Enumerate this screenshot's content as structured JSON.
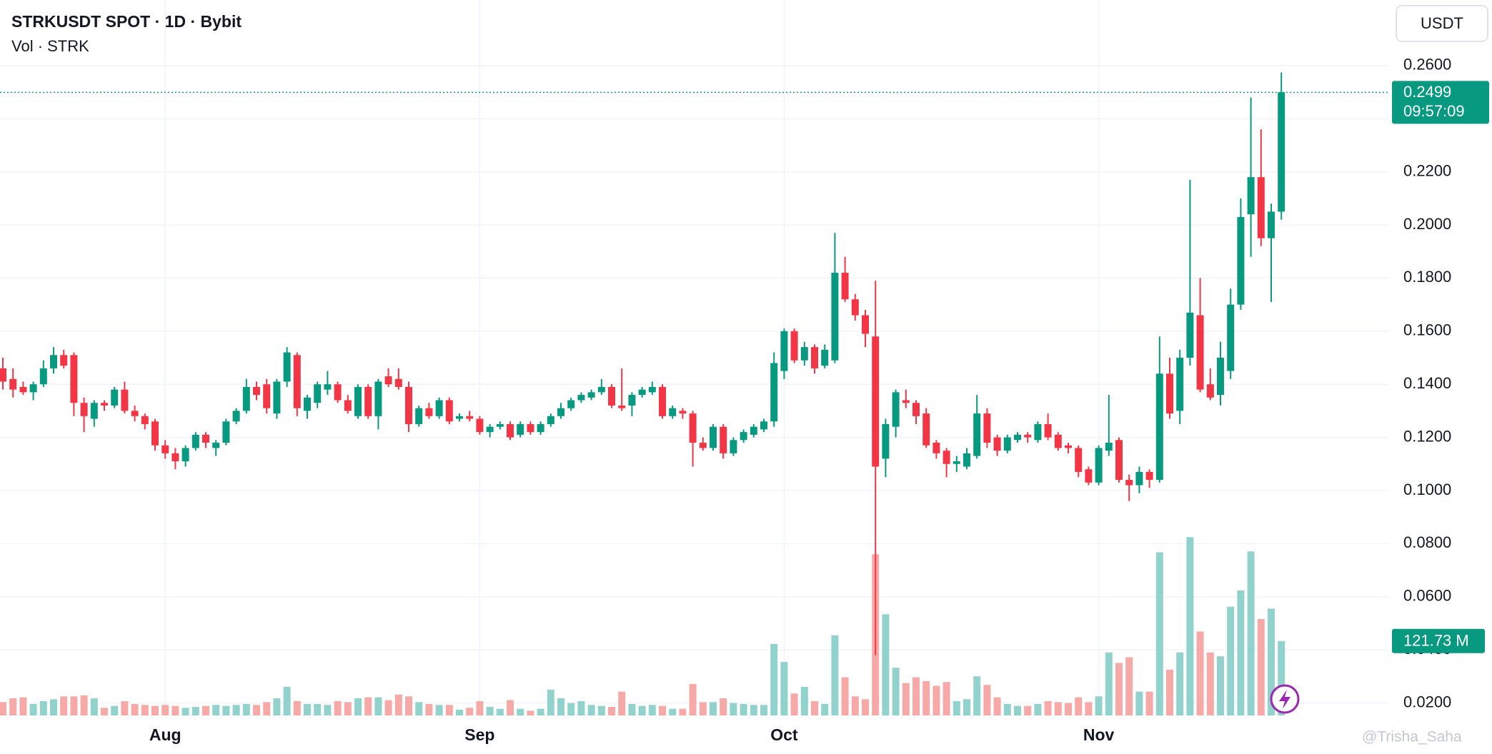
{
  "chart_data": {
    "type": "candlestick",
    "title": "STRKUSDT SPOT · 1D · Bybit",
    "subtitle": "Vol · STRK",
    "currency": "USDT",
    "countdown": "09:57:09",
    "last_price": 0.2499,
    "last_volume_label": "121.73 M",
    "watermark": "@Trisha_Saha",
    "up_color": "#089981",
    "down_color": "#f23645",
    "volume_up_color": "#92d2cc",
    "volume_down_color": "#f7a9a7",
    "grid": true,
    "ylim": [
      0.0153,
      0.2847
    ],
    "vlim": [
      0,
      1170
    ],
    "yticks": [
      {
        "value": 0.02,
        "label": "0.0200"
      },
      {
        "value": 0.04,
        "label": "0.0400"
      },
      {
        "value": 0.06,
        "label": "0.0600"
      },
      {
        "value": 0.08,
        "label": "0.0800"
      },
      {
        "value": 0.1,
        "label": "0.1000"
      },
      {
        "value": 0.12,
        "label": "0.1200"
      },
      {
        "value": 0.14,
        "label": "0.1400"
      },
      {
        "value": 0.16,
        "label": "0.1600"
      },
      {
        "value": 0.18,
        "label": "0.1800"
      },
      {
        "value": 0.2,
        "label": "0.2000"
      },
      {
        "value": 0.22,
        "label": "0.2200"
      },
      {
        "value": 0.24,
        "label": "0.2400"
      },
      {
        "value": 0.26,
        "label": "0.2600"
      }
    ],
    "categories": [
      null,
      null,
      null,
      null,
      null,
      null,
      null,
      null,
      null,
      null,
      null,
      null,
      null,
      null,
      null,
      null,
      "Aug",
      null,
      null,
      null,
      null,
      null,
      null,
      null,
      null,
      null,
      null,
      null,
      null,
      null,
      null,
      null,
      null,
      null,
      null,
      null,
      null,
      null,
      null,
      null,
      null,
      null,
      null,
      null,
      null,
      null,
      null,
      "Sep",
      null,
      null,
      null,
      null,
      null,
      null,
      null,
      null,
      null,
      null,
      null,
      null,
      null,
      null,
      null,
      null,
      null,
      null,
      null,
      null,
      null,
      null,
      null,
      null,
      null,
      null,
      null,
      null,
      null,
      "Oct",
      null,
      null,
      null,
      null,
      null,
      null,
      null,
      null,
      null,
      null,
      null,
      null,
      null,
      null,
      null,
      null,
      null,
      null,
      null,
      null,
      null,
      null,
      null,
      null,
      null,
      null,
      null,
      null,
      null,
      null,
      "Nov",
      null,
      null,
      null,
      null,
      null,
      null,
      null,
      null,
      null,
      null,
      null,
      null,
      null,
      null,
      null,
      null,
      null,
      null
    ],
    "open": [
      0.146,
      0.142,
      0.139,
      0.137,
      0.14,
      0.146,
      0.151,
      0.151,
      0.133,
      0.127,
      0.133,
      0.132,
      0.138,
      0.13,
      0.128,
      0.126,
      0.117,
      0.114,
      0.111,
      0.116,
      0.121,
      0.116,
      0.118,
      0.126,
      0.13,
      0.139,
      0.14,
      0.129,
      0.141,
      0.151,
      0.13,
      0.133,
      0.138,
      0.14,
      0.134,
      0.128,
      0.139,
      0.128,
      0.143,
      0.142,
      0.139,
      0.125,
      0.131,
      0.128,
      0.134,
      0.127,
      0.128,
      0.127,
      0.122,
      0.124,
      0.125,
      0.121,
      0.125,
      0.122,
      0.125,
      0.128,
      0.131,
      0.134,
      0.135,
      0.137,
      0.139,
      0.132,
      0.132,
      0.136,
      0.137,
      0.139,
      0.128,
      0.13,
      0.129,
      0.118,
      0.116,
      0.124,
      0.114,
      0.119,
      0.121,
      0.123,
      0.126,
      0.145,
      0.16,
      0.149,
      0.154,
      0.147,
      0.149,
      0.182,
      0.172,
      0.166,
      0.158,
      0.112,
      0.124,
      0.134,
      0.133,
      0.129,
      0.118,
      0.115,
      0.11,
      0.109,
      0.113,
      0.129,
      0.12,
      0.115,
      0.119,
      0.121,
      0.119,
      0.125,
      0.121,
      0.117,
      0.116,
      0.108,
      0.103,
      0.115,
      0.119,
      0.104,
      0.102,
      0.107,
      0.104,
      0.144,
      0.13,
      0.15,
      0.166,
      0.14,
      0.136,
      0.145,
      0.17,
      0.204,
      0.218,
      0.195,
      0.205
    ],
    "high": [
      0.15,
      0.146,
      0.141,
      0.141,
      0.149,
      0.154,
      0.153,
      0.152,
      0.135,
      0.134,
      0.134,
      0.139,
      0.141,
      0.132,
      0.129,
      0.127,
      0.119,
      0.116,
      0.117,
      0.122,
      0.122,
      0.119,
      0.127,
      0.131,
      0.142,
      0.141,
      0.142,
      0.142,
      0.154,
      0.152,
      0.136,
      0.141,
      0.145,
      0.141,
      0.136,
      0.14,
      0.14,
      0.142,
      0.146,
      0.146,
      0.141,
      0.132,
      0.133,
      0.135,
      0.135,
      0.129,
      0.13,
      0.128,
      0.125,
      0.126,
      0.126,
      0.126,
      0.126,
      0.126,
      0.129,
      0.133,
      0.135,
      0.137,
      0.138,
      0.142,
      0.14,
      0.146,
      0.137,
      0.139,
      0.141,
      0.14,
      0.132,
      0.131,
      0.13,
      0.12,
      0.125,
      0.125,
      0.12,
      0.123,
      0.125,
      0.127,
      0.152,
      0.161,
      0.161,
      0.156,
      0.155,
      0.155,
      0.197,
      0.188,
      0.174,
      0.168,
      0.179,
      0.127,
      0.138,
      0.138,
      0.134,
      0.131,
      0.119,
      0.116,
      0.113,
      0.116,
      0.136,
      0.131,
      0.121,
      0.121,
      0.122,
      0.122,
      0.126,
      0.129,
      0.122,
      0.118,
      0.117,
      0.109,
      0.117,
      0.136,
      0.12,
      0.106,
      0.109,
      0.108,
      0.158,
      0.15,
      0.153,
      0.217,
      0.18,
      0.146,
      0.156,
      0.176,
      0.21,
      0.248,
      0.236,
      0.208,
      0.2574
    ],
    "low": [
      0.138,
      0.135,
      0.136,
      0.134,
      0.139,
      0.144,
      0.146,
      0.128,
      0.122,
      0.124,
      0.13,
      0.131,
      0.129,
      0.126,
      0.123,
      0.115,
      0.112,
      0.108,
      0.109,
      0.115,
      0.116,
      0.113,
      0.117,
      0.125,
      0.129,
      0.134,
      0.129,
      0.127,
      0.139,
      0.128,
      0.127,
      0.131,
      0.136,
      0.133,
      0.129,
      0.127,
      0.127,
      0.123,
      0.139,
      0.138,
      0.122,
      0.124,
      0.127,
      0.127,
      0.125,
      0.126,
      0.126,
      0.121,
      0.12,
      0.123,
      0.119,
      0.12,
      0.121,
      0.121,
      0.124,
      0.127,
      0.13,
      0.133,
      0.134,
      0.136,
      0.131,
      0.13,
      0.128,
      0.135,
      0.136,
      0.127,
      0.127,
      0.127,
      0.109,
      0.115,
      0.115,
      0.112,
      0.113,
      0.118,
      0.12,
      0.122,
      0.124,
      0.142,
      0.148,
      0.147,
      0.144,
      0.146,
      0.148,
      0.171,
      0.164,
      0.154,
      0.038,
      0.105,
      0.12,
      0.131,
      0.125,
      0.116,
      0.112,
      0.105,
      0.107,
      0.108,
      0.112,
      0.116,
      0.113,
      0.114,
      0.118,
      0.118,
      0.118,
      0.119,
      0.115,
      0.114,
      0.105,
      0.102,
      0.102,
      0.113,
      0.103,
      0.096,
      0.099,
      0.101,
      0.103,
      0.127,
      0.125,
      0.147,
      0.137,
      0.134,
      0.132,
      0.142,
      0.168,
      0.188,
      0.192,
      0.171,
      0.202
    ],
    "close": [
      0.141,
      0.138,
      0.137,
      0.14,
      0.146,
      0.151,
      0.147,
      0.133,
      0.128,
      0.133,
      0.132,
      0.138,
      0.13,
      0.128,
      0.125,
      0.117,
      0.114,
      0.111,
      0.116,
      0.121,
      0.118,
      0.118,
      0.126,
      0.13,
      0.139,
      0.136,
      0.131,
      0.141,
      0.152,
      0.131,
      0.135,
      0.14,
      0.14,
      0.134,
      0.13,
      0.139,
      0.128,
      0.141,
      0.14,
      0.139,
      0.125,
      0.131,
      0.128,
      0.134,
      0.126,
      0.128,
      0.127,
      0.122,
      0.124,
      0.125,
      0.12,
      0.125,
      0.122,
      0.125,
      0.128,
      0.131,
      0.134,
      0.136,
      0.137,
      0.139,
      0.132,
      0.131,
      0.136,
      0.138,
      0.139,
      0.128,
      0.131,
      0.129,
      0.118,
      0.116,
      0.124,
      0.114,
      0.119,
      0.122,
      0.124,
      0.126,
      0.148,
      0.16,
      0.149,
      0.154,
      0.146,
      0.153,
      0.182,
      0.172,
      0.166,
      0.159,
      0.109,
      0.125,
      0.137,
      0.133,
      0.128,
      0.117,
      0.114,
      0.11,
      0.111,
      0.114,
      0.129,
      0.118,
      0.115,
      0.12,
      0.121,
      0.12,
      0.125,
      0.12,
      0.116,
      0.116,
      0.107,
      0.103,
      0.116,
      0.118,
      0.104,
      0.102,
      0.107,
      0.104,
      0.144,
      0.129,
      0.15,
      0.167,
      0.138,
      0.135,
      0.15,
      0.17,
      0.203,
      0.218,
      0.195,
      0.205,
      0.2499
    ],
    "volume": [
      21.8,
      28.1,
      29.6,
      18.7,
      23.4,
      26.5,
      31.2,
      31.2,
      32.8,
      28.1,
      12.5,
      15.6,
      23.4,
      18.7,
      17.2,
      15.6,
      17.2,
      15.6,
      12.5,
      14.0,
      15.6,
      17.2,
      15.6,
      17.2,
      18.7,
      17.2,
      21.8,
      28.1,
      46.8,
      23.4,
      18.7,
      18.7,
      17.2,
      23.4,
      21.8,
      28.1,
      29.6,
      29.6,
      25.0,
      34.3,
      31.2,
      21.8,
      18.7,
      17.2,
      17.2,
      9.4,
      12.5,
      23.4,
      14.0,
      10.9,
      25.0,
      10.9,
      7.8,
      10.9,
      42.1,
      28.1,
      20.3,
      23.4,
      17.2,
      15.6,
      14.0,
      39.0,
      18.7,
      15.6,
      17.2,
      15.6,
      10.9,
      10.9,
      51.5,
      21.8,
      21.8,
      28.1,
      20.3,
      18.7,
      17.2,
      17.2,
      117.0,
      87.4,
      35.9,
      46.8,
      23.4,
      18.7,
      131.0,
      62.4,
      31.2,
      26.5,
      263.6,
      165.4,
      78.0,
      53.0,
      62.4,
      56.2,
      48.4,
      54.6,
      23.4,
      26.5,
      64.0,
      49.9,
      29.6,
      18.7,
      15.6,
      15.6,
      18.7,
      23.4,
      21.8,
      20.3,
      29.6,
      21.8,
      31.2,
      103.0,
      85.8,
      95.2,
      39.0,
      39.0,
      266.8,
      74.9,
      103.0,
      291.7,
      137.3,
      103.0,
      96.7,
      177.8,
      204.4,
      268.3,
      157.6,
      174.7,
      121.73
    ]
  }
}
